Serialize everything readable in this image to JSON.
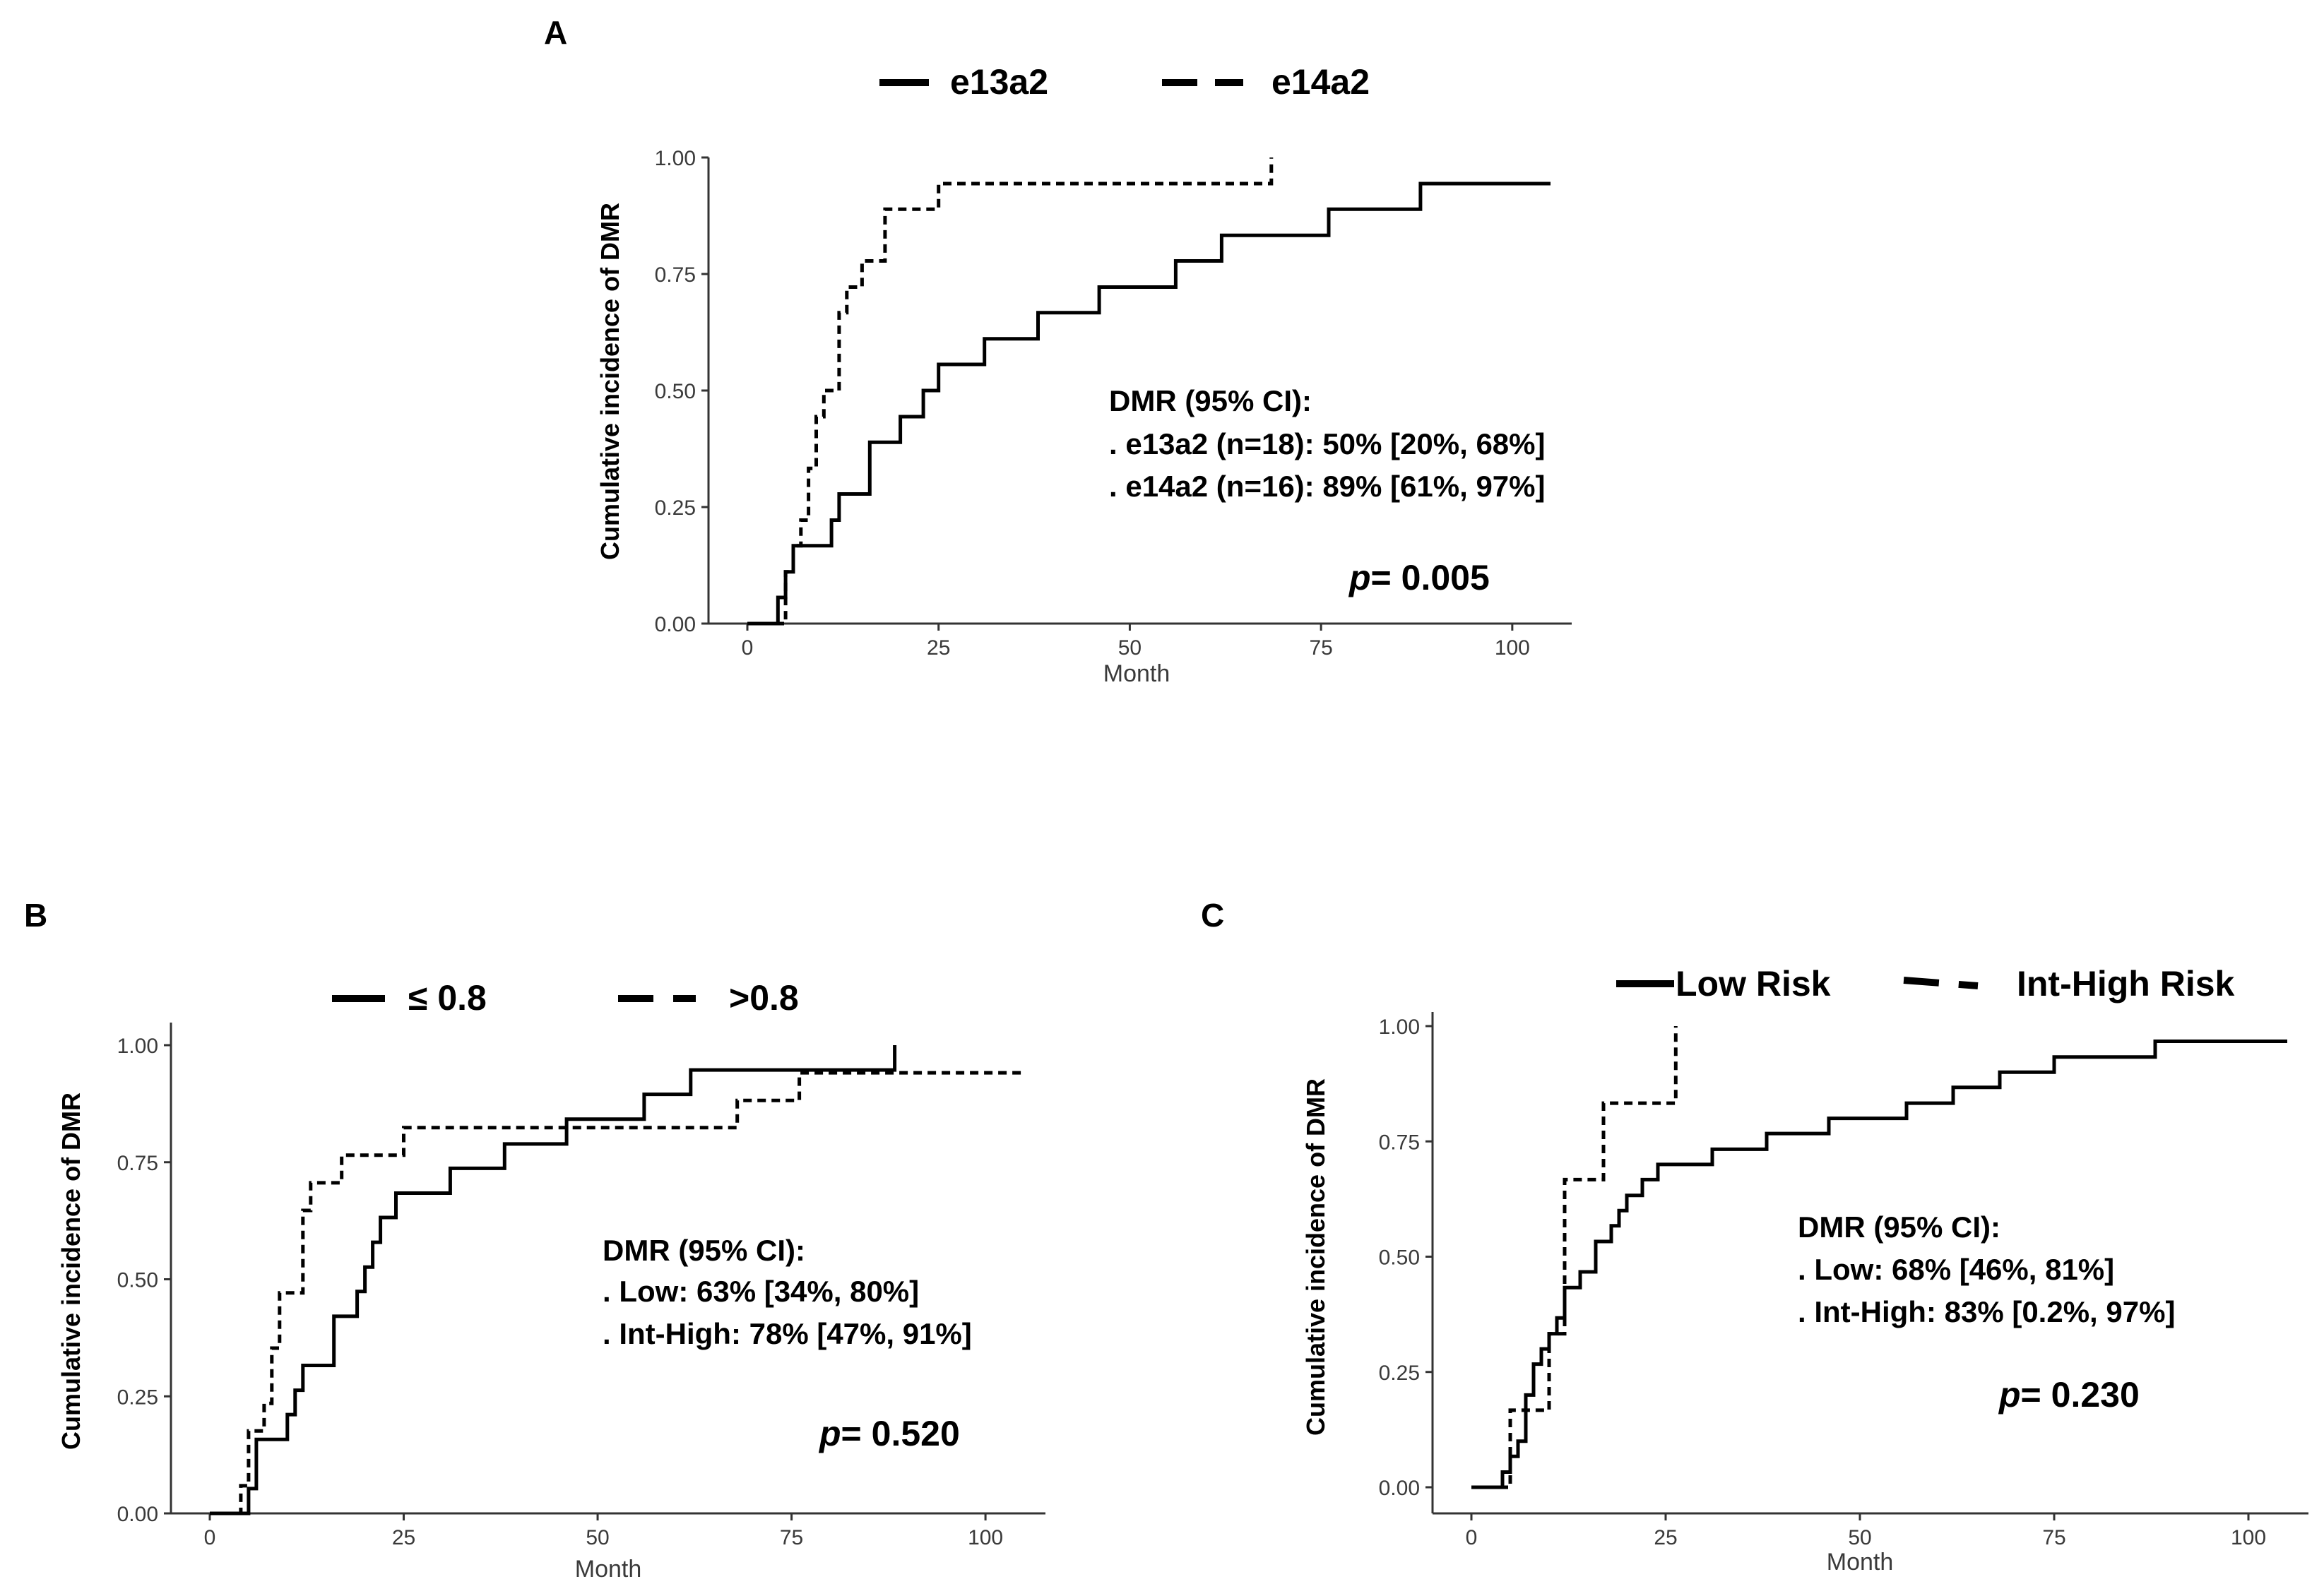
{
  "chart_data": [
    {
      "panel": "A",
      "type": "line",
      "step": true,
      "legend": [
        {
          "label": "e13a2",
          "style": "solid"
        },
        {
          "label": "e14a2",
          "style": "dashed"
        }
      ],
      "series": [
        {
          "name": "e13a2",
          "style": "solid",
          "x": [
            0,
            4,
            5,
            6,
            7,
            11,
            12,
            16,
            20,
            23,
            25,
            31,
            38,
            46,
            56,
            62,
            76,
            88,
            105
          ],
          "y": [
            0,
            0.056,
            0.111,
            0.167,
            0.167,
            0.222,
            0.278,
            0.389,
            0.444,
            0.5,
            0.556,
            0.611,
            0.667,
            0.722,
            0.778,
            0.833,
            0.889,
            0.944,
            0.944
          ]
        },
        {
          "name": "e14a2",
          "style": "dashed",
          "x": [
            0,
            5,
            6,
            7,
            8,
            9,
            10,
            12,
            13,
            15,
            18,
            20,
            25,
            68,
            68.5
          ],
          "y": [
            0,
            0.111,
            0.167,
            0.222,
            0.333,
            0.444,
            0.5,
            0.667,
            0.722,
            0.778,
            0.889,
            0.889,
            0.944,
            0.944,
            1.0
          ]
        }
      ],
      "xlabel": "Month",
      "ylabel": "Cumulative incidence of DMR",
      "xlim": [
        0,
        105
      ],
      "ylim": [
        0,
        1
      ],
      "xticks": [
        "0",
        "25",
        "50",
        "75",
        "100"
      ],
      "yticks": [
        "0.00",
        "0.25",
        "0.50",
        "0.75",
        "1.00"
      ],
      "annotation": {
        "title": "DMR (95% CI):",
        "lines": [
          ". e13a2 (n=18): 50% [20%, 68%]",
          ". e14a2 (n=16): 89% [61%, 97%]"
        ],
        "p_label": "p",
        "p_value": "= 0.005"
      }
    },
    {
      "panel": "B",
      "type": "line",
      "step": true,
      "legend": [
        {
          "label": "≤ 0.8",
          "style": "solid"
        },
        {
          "label": ">0.8",
          "style": "dashed"
        }
      ],
      "series": [
        {
          "name": "≤ 0.8",
          "style": "solid",
          "x": [
            0,
            5,
            6,
            7,
            10,
            11,
            12,
            13,
            16,
            19,
            20,
            21,
            22,
            24,
            25,
            31,
            38,
            46,
            56,
            62,
            88,
            88.3
          ],
          "y": [
            0,
            0.053,
            0.158,
            0.158,
            0.211,
            0.263,
            0.316,
            0.316,
            0.421,
            0.474,
            0.526,
            0.579,
            0.632,
            0.684,
            0.684,
            0.737,
            0.789,
            0.842,
            0.895,
            0.947,
            0.947,
            1.0
          ]
        },
        {
          "name": ">0.8",
          "style": "dashed",
          "x": [
            0,
            4,
            5,
            7,
            8,
            9,
            10,
            12,
            13,
            15,
            17,
            25,
            27,
            68,
            76,
            105
          ],
          "y": [
            0,
            0.059,
            0.176,
            0.235,
            0.353,
            0.471,
            0.471,
            0.647,
            0.706,
            0.706,
            0.765,
            0.824,
            0.824,
            0.882,
            0.941,
            0.941
          ]
        }
      ],
      "xlabel": "Month",
      "ylabel": "Cumulative incidence of DMR",
      "xlim": [
        0,
        105
      ],
      "ylim": [
        0,
        1
      ],
      "xticks": [
        "0",
        "25",
        "50",
        "75",
        "100"
      ],
      "yticks": [
        "0.00",
        "0.25",
        "0.50",
        "0.75",
        "1.00"
      ],
      "annotation": {
        "title": "DMR (95% CI):",
        "lines": [
          ". Low: 63% [34%, 80%]",
          ". Int-High: 78% [47%, 91%]"
        ],
        "p_label": "p",
        "p_value": "= 0.520"
      }
    },
    {
      "panel": "C",
      "type": "line",
      "step": true,
      "legend": [
        {
          "label": "Low Risk",
          "style": "solid"
        },
        {
          "label": "Int-High Risk",
          "style": "dashed"
        }
      ],
      "series": [
        {
          "name": "Low Risk",
          "style": "solid",
          "x": [
            0,
            4,
            5,
            6,
            7,
            8,
            9,
            10,
            11,
            12,
            14,
            16,
            18,
            19,
            20,
            22,
            24,
            25,
            31,
            38,
            46,
            56,
            62,
            68,
            75,
            88,
            105
          ],
          "y": [
            0,
            0.033,
            0.067,
            0.1,
            0.2,
            0.267,
            0.3,
            0.333,
            0.367,
            0.433,
            0.467,
            0.533,
            0.567,
            0.6,
            0.633,
            0.667,
            0.7,
            0.7,
            0.733,
            0.767,
            0.8,
            0.833,
            0.867,
            0.9,
            0.933,
            0.967,
            0.967
          ]
        },
        {
          "name": "Int-High Risk",
          "style": "dashed",
          "x": [
            0,
            5,
            8,
            10,
            12,
            16,
            17,
            26,
            26.3
          ],
          "y": [
            0,
            0.167,
            0.167,
            0.333,
            0.667,
            0.667,
            0.833,
            0.833,
            1.0
          ]
        }
      ],
      "xlabel": "Month",
      "ylabel": "Cumulative incidence of DMR",
      "xlim": [
        0,
        105
      ],
      "ylim": [
        0,
        1
      ],
      "xticks": [
        "0",
        "25",
        "50",
        "75",
        "100"
      ],
      "yticks": [
        "0.00",
        "0.25",
        "0.50",
        "0.75",
        "1.00"
      ],
      "annotation": {
        "title": "DMR (95% CI):",
        "lines": [
          ". Low: 68% [46%, 81%]",
          ". Int-High: 83% [0.2%, 97%]"
        ],
        "p_label": "p",
        "p_value": "= 0.230"
      }
    }
  ]
}
